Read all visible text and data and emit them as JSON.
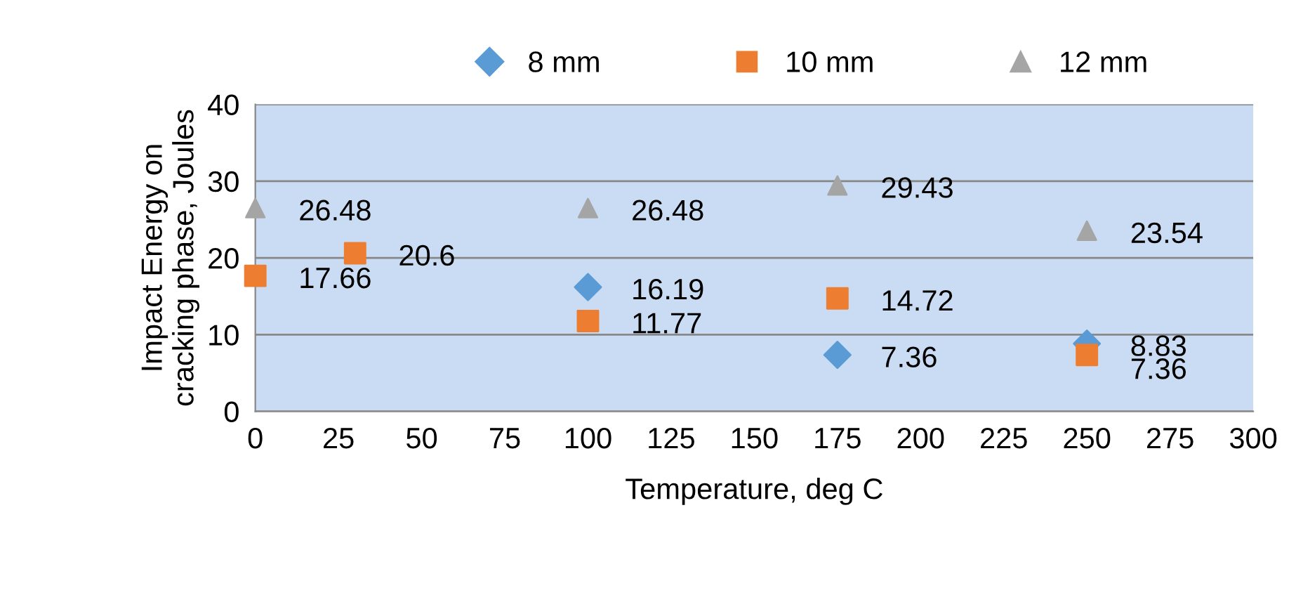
{
  "chart_data": {
    "type": "scatter",
    "xlabel": "Temperature, deg C",
    "ylabel": "Impact Energy on\ncracking phase, Joules",
    "xlim": [
      0,
      300
    ],
    "xticks": [
      0,
      25,
      50,
      75,
      100,
      125,
      150,
      175,
      200,
      225,
      250,
      275,
      300
    ],
    "ylim": [
      0,
      40
    ],
    "yticks": [
      0,
      10,
      20,
      30,
      40
    ],
    "grid": "y",
    "legend": "top",
    "series": [
      {
        "name": "8 mm",
        "color": "#5b9bd5",
        "marker": "diamond",
        "x": [
          100,
          175,
          250
        ],
        "values": [
          16.19,
          7.36,
          8.83
        ],
        "value_labels": [
          "16.19",
          "7.36",
          "8.83"
        ]
      },
      {
        "name": "10 mm",
        "color": "#ed7d31",
        "marker": "square",
        "x": [
          0,
          30,
          100,
          175,
          250
        ],
        "values": [
          17.66,
          20.6,
          11.77,
          14.72,
          7.36
        ],
        "value_labels": [
          "17.66",
          "20.6",
          "11.77",
          "14.72",
          "7.36"
        ]
      },
      {
        "name": "12 mm",
        "color": "#a5a5a5",
        "marker": "triangle",
        "x": [
          0,
          100,
          175,
          250
        ],
        "values": [
          26.48,
          26.48,
          29.43,
          23.54
        ],
        "value_labels": [
          "26.48",
          "26.48",
          "29.43",
          "23.54"
        ]
      }
    ]
  }
}
